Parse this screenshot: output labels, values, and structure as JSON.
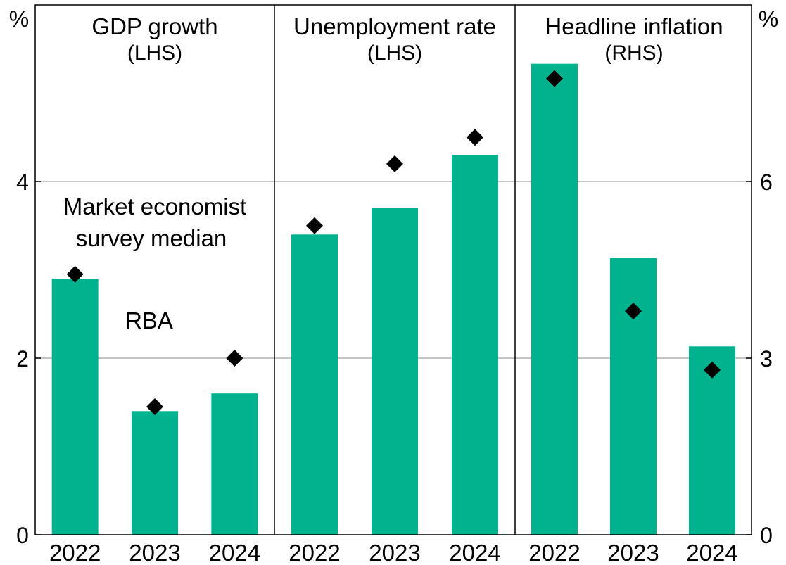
{
  "chart_data": {
    "type": "bar",
    "axes": {
      "left": {
        "unit": "%",
        "ylim": [
          0,
          6
        ],
        "ticks": [
          "0",
          "2",
          "4"
        ],
        "tick_values": [
          0,
          2,
          4
        ]
      },
      "right": {
        "unit": "%",
        "ylim": [
          0,
          9
        ],
        "ticks": [
          "0",
          "3",
          "6"
        ],
        "tick_values": [
          0,
          3,
          6
        ]
      }
    },
    "grid": true,
    "colors": {
      "rba": "#00b38f",
      "survey": "#000000",
      "grid": "#b3b3b3",
      "panel_border": "#000000",
      "annotation_rba": "#00b38f"
    },
    "annotations": {
      "survey_label_line1": "Market economist",
      "survey_label_line2": "survey median",
      "rba_label": "RBA"
    },
    "panels": [
      {
        "title": "GDP growth",
        "subtitle": "(LHS)",
        "axis": "left",
        "categories": [
          "2022",
          "2023",
          "2024"
        ],
        "series": [
          {
            "name": "RBA",
            "values": [
              2.9,
              1.4,
              1.6
            ]
          },
          {
            "name": "Market economist survey median",
            "values": [
              2.95,
              1.45,
              2.0
            ]
          }
        ]
      },
      {
        "title": "Unemployment rate",
        "subtitle": "(LHS)",
        "axis": "left",
        "categories": [
          "2022",
          "2023",
          "2024"
        ],
        "series": [
          {
            "name": "RBA",
            "values": [
              3.4,
              3.7,
              4.3
            ]
          },
          {
            "name": "Market economist survey median",
            "values": [
              3.5,
              4.2,
              4.5
            ]
          }
        ]
      },
      {
        "title": "Headline inflation",
        "subtitle": "(RHS)",
        "axis": "right",
        "categories": [
          "2022",
          "2023",
          "2024"
        ],
        "series": [
          {
            "name": "RBA",
            "values": [
              8.0,
              4.7,
              3.2
            ]
          },
          {
            "name": "Market economist survey median",
            "values": [
              7.75,
              3.8,
              2.8
            ]
          }
        ]
      }
    ]
  }
}
